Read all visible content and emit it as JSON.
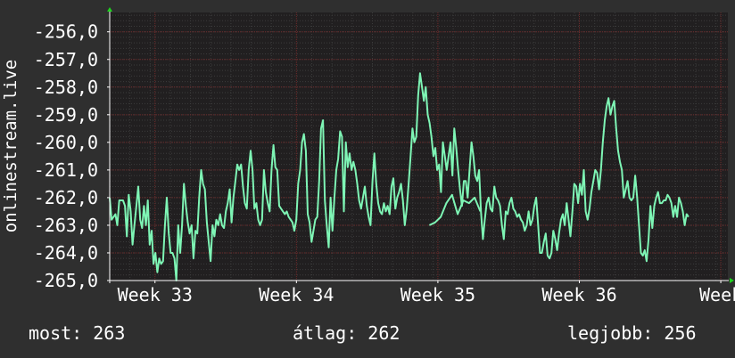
{
  "footer": {
    "now_label": "most:",
    "now_value": "263",
    "avg_label": "átlag:",
    "avg_value": "262",
    "best_label": "legjobb:",
    "best_value": "256"
  },
  "colors": {
    "background": "#2f2f2f",
    "plot_background": "#211f20",
    "line": "#7ef5b5",
    "grid_major": "#6e2a2a",
    "grid_minor": "#3c3c3c",
    "axis": "#ffffff",
    "arrow": "#1fd41f",
    "text": "#ffffff"
  },
  "chart_data": {
    "type": "line",
    "title": "",
    "ylabel": "onlinestream.live",
    "xlabel": "",
    "ylim": [
      -265.0,
      -255.3
    ],
    "yticks": [
      "-256,0",
      "-257,0",
      "-258,0",
      "-259,0",
      "-260,0",
      "-261,0",
      "-262,0",
      "-263,0",
      "-264,0",
      "-265,0"
    ],
    "ytick_values": [
      -256,
      -257,
      -258,
      -259,
      -260,
      -261,
      -262,
      -263,
      -264,
      -265
    ],
    "xlim": [
      0,
      4.37
    ],
    "xticks": [
      "Week 33",
      "Week 34",
      "Week 35",
      "Week 36",
      "Week"
    ],
    "xtick_values": [
      0.32,
      1.32,
      2.32,
      3.32,
      4.32
    ],
    "grid": true,
    "legend": "none",
    "series": [
      {
        "x_start": 0.0,
        "x_step": 0.01346,
        "values": [
          -262.0,
          -262.8,
          -262.7,
          -262.6,
          -263.0,
          -262.1,
          -262.1,
          -262.1,
          -262.3,
          -263.4,
          -261.9,
          -262.5,
          -263.7,
          -263.0,
          -262.3,
          -261.6,
          -262.8,
          -263.1,
          -262.3,
          -263.0,
          -262.1,
          -263.7,
          -263.2,
          -264.4,
          -264.0,
          -264.7,
          -264.2,
          -264.4,
          -264.3,
          -263.0,
          -262.0,
          -263.3,
          -264.0,
          -264.0,
          -264.2,
          -265.0,
          -263.0,
          -264.0,
          -263.0,
          -261.5,
          -262.3,
          -262.9,
          -263.3,
          -263.0,
          -264.2,
          -263.2,
          -263.3,
          -262.0,
          -261.0,
          -261.5,
          -261.7,
          -262.9,
          -263.6,
          -264.3,
          -263.0,
          -263.4,
          -262.8,
          -263.0,
          -262.6,
          -263.0,
          -263.1,
          -262.5,
          -262.2,
          -261.7,
          -262.9,
          -262.0,
          -261.4,
          -260.8,
          -261.0,
          -260.8,
          -261.6,
          -262.2,
          -262.4,
          -261.0,
          -260.3,
          -261.0,
          -262.4,
          -262.2,
          -262.8,
          -263.0,
          -262.8,
          -261.0,
          -261.8,
          -262.2,
          -262.5,
          -261.0,
          -260.1,
          -260.9,
          -261.0,
          -262.3,
          -262.4,
          -262.5,
          -262.6,
          -262.5,
          -262.7,
          -262.8,
          -262.9,
          -263.2,
          -262.8,
          -261.5,
          -261.0,
          -260.0,
          -259.7,
          -260.3,
          -262.6,
          -262.9,
          -263.6,
          -263.2,
          -262.8,
          -262.7,
          -261.4,
          -259.5,
          -259.2,
          -262.1,
          -263.0,
          -263.8,
          -262.0,
          -263.2,
          -262.0,
          -261.0,
          -260.6,
          -259.6,
          -259.8,
          -262.5,
          -260.0,
          -260.9,
          -260.4,
          -261.0,
          -260.7,
          -261.0,
          -261.5,
          -262.1,
          -262.4,
          -262.0,
          -261.6,
          -262.3,
          -262.7,
          -263.0,
          -261.4,
          -260.4,
          -261.5,
          -262.2,
          -262.5,
          -262.6,
          -262.2,
          -262.5,
          -262.3,
          -262.6,
          -261.6,
          -261.3,
          -262.4,
          -262.0,
          -261.8,
          -261.5,
          -262.1,
          -263.0,
          -262.4,
          -261.5,
          -260.5,
          -259.5,
          -260.0,
          -259.8,
          -258.3,
          -257.5,
          -258.0,
          -258.5,
          -258.0,
          -259.0,
          -259.3,
          -259.8,
          -260.5,
          -260.2,
          -261.0,
          -260.8,
          -261.8,
          -260.0,
          -260.5,
          -261.0,
          -260.5,
          -260.0,
          -261.2,
          -259.5,
          -260.2,
          -261.0,
          -261.7,
          -262.3,
          -261.4,
          -261.4,
          -262.0,
          -261.0,
          -260.0,
          -260.5,
          -261.2,
          -261.4,
          -261.0,
          -262.5,
          -263.5,
          -262.8,
          -262.2,
          -262.0,
          -262.4,
          -262.5,
          -261.6,
          -262.0,
          -262.1,
          -262.3,
          -263.0,
          -263.5,
          -262.5,
          -262.6,
          -262.2,
          -262.0,
          -262.4,
          -262.5,
          -262.7,
          -262.6,
          -262.8,
          -262.9,
          -263.2,
          -263.0,
          -262.5,
          -263.0,
          -262.8,
          -262.3,
          -262.0,
          -263.0,
          -264.0,
          -264.0,
          -263.6,
          -263.3,
          -264.1,
          -264.2,
          -264.0,
          -263.2,
          -263.5,
          -263.9,
          -263.3,
          -262.8,
          -262.6,
          -263.0,
          -262.2,
          -262.8,
          -263.4,
          -262.5,
          -261.5,
          -261.6,
          -262.2,
          -261.5,
          -261.9,
          -261.0,
          -262.5,
          -262.8,
          -262.4,
          -261.8,
          -261.4,
          -261.0,
          -261.1,
          -261.7,
          -261.0,
          -260.0,
          -259.2,
          -258.7,
          -258.4,
          -259.0,
          -258.7,
          -258.5,
          -259.5,
          -260.3,
          -260.7,
          -261.0,
          -262.0,
          -261.7,
          -261.4,
          -262.0,
          -262.1,
          -262.0,
          -261.2,
          -262.0,
          -263.0,
          -264.0,
          -264.1,
          -263.9,
          -264.3,
          -263.5,
          -262.3,
          -263.1,
          -262.3,
          -262.0,
          -261.8,
          -262.2,
          -262.2,
          -262.1,
          -262.1,
          -261.9,
          -262.0,
          -262.2,
          -262.7,
          -262.3,
          -262.7,
          -262.0,
          -262.2,
          -262.5,
          -263.0,
          -262.6,
          -262.7
        ]
      },
      {
        "x_start": 2.26,
        "x_step": 0.04,
        "values": [
          -263.0,
          -262.9,
          -262.7,
          -262.2,
          -261.9,
          -262.6,
          -262.1,
          -262.2,
          -262.0,
          -262.5
        ]
      }
    ]
  }
}
